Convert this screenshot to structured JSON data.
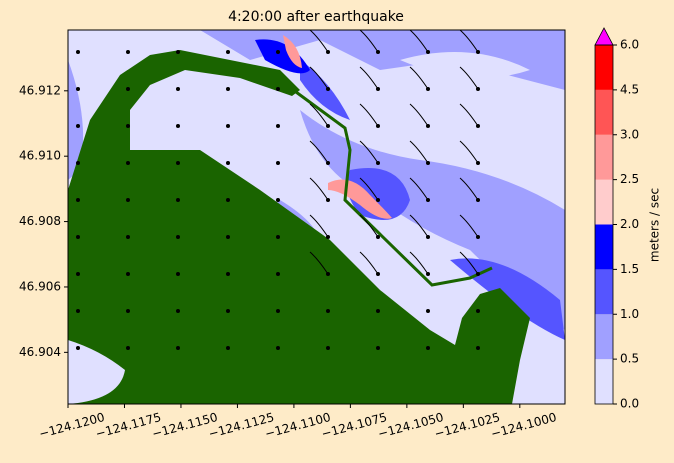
{
  "chart_data": {
    "type": "contour_map",
    "title": "4:20:00 after earthquake",
    "xlim": [
      -124.12,
      -124.098
    ],
    "ylim": [
      46.90242,
      46.91386
    ],
    "xticks": [
      {
        "value": -124.12,
        "label": "−124.1200"
      },
      {
        "value": -124.1175,
        "label": "−124.1175"
      },
      {
        "value": -124.115,
        "label": "−124.1150"
      },
      {
        "value": -124.1125,
        "label": "−124.1125"
      },
      {
        "value": -124.11,
        "label": "−124.1100"
      },
      {
        "value": -124.1075,
        "label": "−124.1075"
      },
      {
        "value": -124.105,
        "label": "−124.1050"
      },
      {
        "value": -124.1025,
        "label": "−124.1025"
      },
      {
        "value": -124.1,
        "label": "−124.1000"
      }
    ],
    "yticks": [
      46.904,
      46.906,
      46.908,
      {
        "value": 46.91,
        "label": "46.910"
      },
      46.912
    ],
    "colorbar": {
      "label": "meters / sec",
      "levels": [
        {
          "value": 0,
          "label": "0.0"
        },
        {
          "value": 0.5,
          "label": "0.5"
        },
        {
          "value": 1,
          "label": "1.0"
        },
        {
          "value": 1.5,
          "label": "1.5"
        },
        {
          "value": 2,
          "label": "2.0"
        },
        {
          "value": 2.5,
          "label": "2.5"
        },
        {
          "value": 3,
          "label": "3.0"
        },
        {
          "value": 4.5,
          "label": "4.5"
        },
        {
          "value": 6,
          "label": "6.0"
        }
      ],
      "colors": [
        "#e0e0ff",
        "#a0a0ff",
        "#5555ff",
        "#0000ff",
        "#ffcccc",
        "#ff9999",
        "#ff5555",
        "#ff0000"
      ],
      "extend_color": "#ff00ff"
    }
  }
}
